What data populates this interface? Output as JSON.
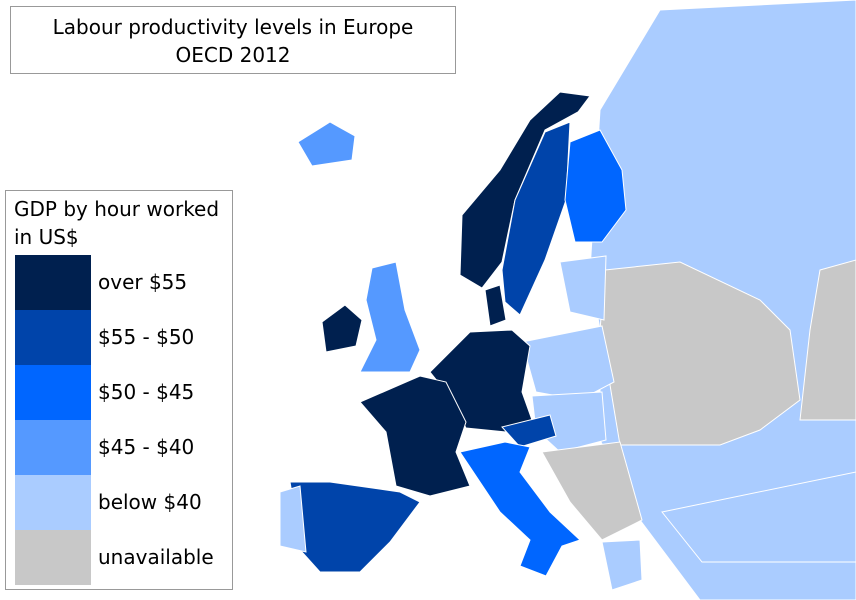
{
  "title": {
    "line1": "Labour productivity levels in Europe",
    "line2": "OECD 2012"
  },
  "legend": {
    "title": "GDP by hour worked in US$",
    "items": [
      {
        "label": "over $55",
        "color": "#00204f"
      },
      {
        "label": "$55 - $50",
        "color": "#0044aa"
      },
      {
        "label": "$50 - $45",
        "color": "#0066ff"
      },
      {
        "label": "$45 - $40",
        "color": "#5599ff"
      },
      {
        "label": "below $40",
        "color": "#aaccff"
      },
      {
        "label": "unavailable",
        "color": "#c8c8c8"
      }
    ]
  }
}
